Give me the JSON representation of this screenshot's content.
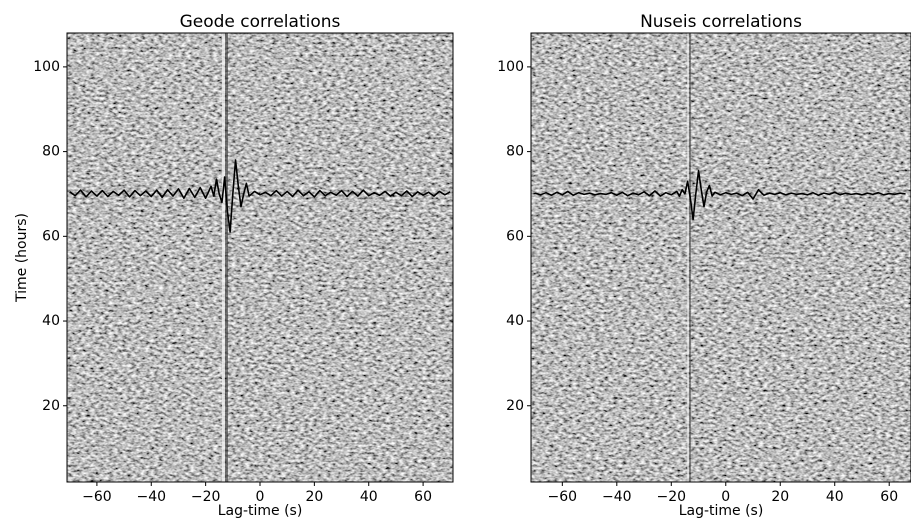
{
  "chart_data": [
    {
      "type": "line",
      "title": "Geode correlations",
      "xlabel": "Lag-time (s)",
      "ylabel": "Time (hours)",
      "xlim": [
        -71,
        71
      ],
      "ylim": [
        2,
        108
      ],
      "xticks": [
        {
          "value": -60,
          "label": "−60"
        },
        {
          "value": -40,
          "label": "−40"
        },
        {
          "value": -20,
          "label": "−20"
        },
        0,
        20,
        40,
        60
      ],
      "yticks": [
        20,
        40,
        60,
        80,
        100
      ],
      "x": [
        -70,
        -68,
        -66,
        -64,
        -62,
        -60,
        -58,
        -56,
        -54,
        -52,
        -50,
        -48,
        -46,
        -44,
        -42,
        -40,
        -38,
        -36,
        -34,
        -32,
        -30,
        -28,
        -26,
        -24,
        -22,
        -20,
        -18,
        -17,
        -16,
        -15,
        -14,
        -13,
        -12,
        -11,
        -10,
        -9,
        -8,
        -7,
        -6,
        -5,
        -4,
        -2,
        0,
        2,
        4,
        6,
        8,
        10,
        12,
        14,
        16,
        18,
        20,
        22,
        24,
        26,
        28,
        30,
        32,
        34,
        36,
        38,
        40,
        42,
        44,
        46,
        48,
        50,
        52,
        54,
        56,
        58,
        60,
        62,
        64,
        66,
        68,
        70
      ],
      "series": [
        {
          "color": "#000000",
          "values": [
            70.5,
            69.6,
            70.9,
            69.3,
            70.7,
            69.5,
            70.8,
            69.4,
            70.6,
            69.7,
            70.9,
            69.3,
            70.8,
            69.6,
            70.7,
            69.4,
            70.9,
            69.2,
            71.0,
            69.5,
            71.2,
            69.0,
            71.3,
            69.2,
            71.5,
            69.0,
            71.8,
            69.5,
            73.5,
            70.0,
            68.0,
            74.0,
            66.0,
            61.0,
            70.0,
            78.0,
            72.0,
            67.0,
            70.0,
            72.5,
            69.5,
            70.6,
            69.8,
            70.4,
            69.6,
            70.8,
            69.5,
            70.6,
            69.4,
            70.9,
            69.6,
            70.5,
            69.3,
            70.8,
            69.6,
            70.4,
            69.7,
            70.8,
            69.4,
            70.6,
            69.5,
            70.9,
            69.6,
            70.3,
            69.7,
            70.6,
            69.5,
            70.4,
            69.6,
            70.7,
            69.4,
            70.5,
            69.7,
            70.4,
            69.5,
            70.6,
            69.8,
            70.5
          ]
        }
      ]
    },
    {
      "type": "line",
      "title": "Nuseis correlations",
      "xlabel": "Lag-time (s)",
      "xlim": [
        -71.5,
        68
      ],
      "ylim": [
        2,
        108
      ],
      "xticks": [
        {
          "value": -60,
          "label": "−60"
        },
        {
          "value": -40,
          "label": "−40"
        },
        {
          "value": -20,
          "label": "−20"
        },
        0,
        20,
        40,
        60
      ],
      "yticks": [
        20,
        40,
        60,
        80,
        100
      ],
      "x": [
        -70,
        -68,
        -66,
        -64,
        -62,
        -60,
        -58,
        -56,
        -54,
        -52,
        -50,
        -48,
        -46,
        -44,
        -42,
        -40,
        -38,
        -36,
        -34,
        -32,
        -30,
        -28,
        -26,
        -24,
        -22,
        -20,
        -18,
        -17,
        -16,
        -15,
        -14,
        -13,
        -12,
        -11,
        -10,
        -9,
        -8,
        -7,
        -6,
        -5,
        -4,
        -2,
        0,
        2,
        4,
        6,
        8,
        10,
        12,
        14,
        16,
        18,
        20,
        22,
        24,
        26,
        28,
        30,
        32,
        34,
        36,
        38,
        40,
        42,
        44,
        46,
        48,
        50,
        52,
        54,
        56,
        58,
        60,
        62,
        64,
        66
      ],
      "series": [
        {
          "color": "#000000",
          "values": [
            70.2,
            69.8,
            70.3,
            69.7,
            70.4,
            69.8,
            70.6,
            69.7,
            70.3,
            69.9,
            70.2,
            69.8,
            70.1,
            69.9,
            70.3,
            69.7,
            70.4,
            69.6,
            70.2,
            69.8,
            70.5,
            69.6,
            70.7,
            69.5,
            70.3,
            69.8,
            70.6,
            69.5,
            71.0,
            70.0,
            73.0,
            69.0,
            64.0,
            70.0,
            75.5,
            71.0,
            67.0,
            70.5,
            72.0,
            69.5,
            70.4,
            69.8,
            70.3,
            69.9,
            70.2,
            69.6,
            70.4,
            68.8,
            71.0,
            69.7,
            70.2,
            69.9,
            70.3,
            69.8,
            70.2,
            69.9,
            70.1,
            69.8,
            70.3,
            69.7,
            70.2,
            69.9,
            70.4,
            69.8,
            70.2,
            69.9,
            70.1,
            69.8,
            70.2,
            69.9,
            70.3,
            69.8,
            70.1,
            69.9,
            70.2,
            70.0
          ]
        }
      ]
    }
  ]
}
